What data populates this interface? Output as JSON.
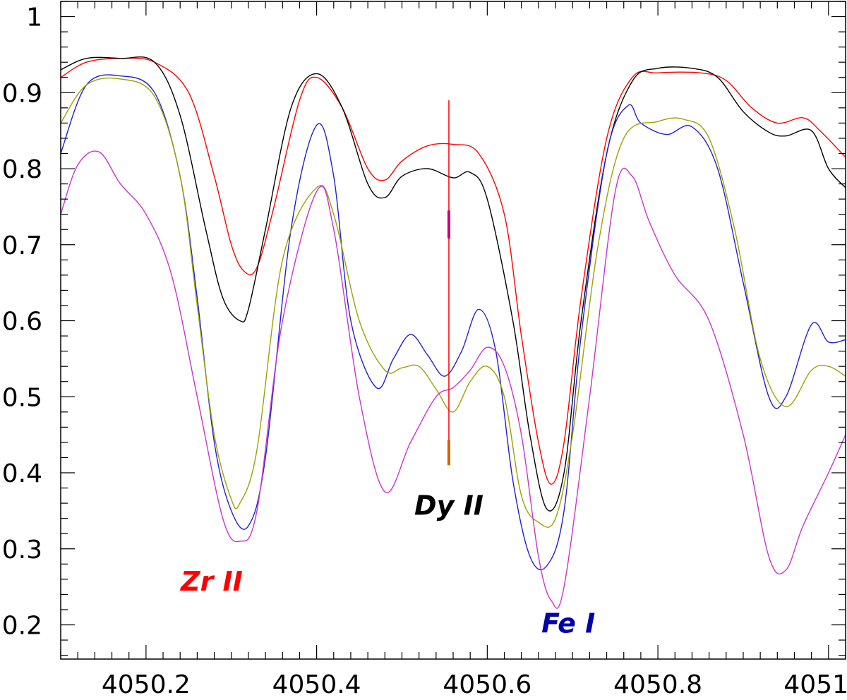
{
  "chart_data": {
    "type": "line",
    "title": "",
    "xlabel": "",
    "ylabel": "",
    "xlim": [
      4050.1,
      4051.02
    ],
    "ylim": [
      0.155,
      1.02
    ],
    "grid": false,
    "x_ticks": [
      {
        "value": 4050.2,
        "label": "4050.2"
      },
      {
        "value": 4050.4,
        "label": "4050.4"
      },
      {
        "value": 4050.6,
        "label": "4050.6"
      },
      {
        "value": 4050.8,
        "label": "4050.8"
      },
      {
        "value": 4051.0,
        "label": "4051"
      }
    ],
    "y_ticks": [
      {
        "value": 1.0,
        "label": "1"
      },
      {
        "value": 0.9,
        "label": "0.9"
      },
      {
        "value": 0.8,
        "label": "0.8"
      },
      {
        "value": 0.7,
        "label": "0.7"
      },
      {
        "value": 0.6,
        "label": "0.6"
      },
      {
        "value": 0.5,
        "label": "0.5"
      },
      {
        "value": 0.4,
        "label": "0.4"
      },
      {
        "value": 0.3,
        "label": "0.3"
      },
      {
        "value": 0.2,
        "label": "0.2"
      }
    ],
    "series": [
      {
        "color": "#ff0000",
        "x": [
          4050.1,
          4050.13,
          4050.17,
          4050.21,
          4050.25,
          4050.28,
          4050.3,
          4050.315,
          4050.33,
          4050.35,
          4050.38,
          4050.4,
          4050.43,
          4050.46,
          4050.48,
          4050.5,
          4050.53,
          4050.56,
          4050.59,
          4050.62,
          4050.64,
          4050.66,
          4050.675,
          4050.69,
          4050.71,
          4050.74,
          4050.77,
          4050.8,
          4050.85,
          4050.88,
          4050.91,
          4050.94,
          4050.97,
          4050.99,
          4051.02
        ],
        "y": [
          0.92,
          0.94,
          0.945,
          0.94,
          0.9,
          0.79,
          0.7,
          0.665,
          0.67,
          0.75,
          0.89,
          0.92,
          0.88,
          0.8,
          0.785,
          0.81,
          0.83,
          0.832,
          0.82,
          0.74,
          0.58,
          0.44,
          0.385,
          0.44,
          0.63,
          0.84,
          0.92,
          0.926,
          0.926,
          0.916,
          0.88,
          0.86,
          0.867,
          0.85,
          0.815
        ]
      },
      {
        "color": "#000000",
        "x": [
          4050.1,
          4050.13,
          4050.17,
          4050.21,
          4050.24,
          4050.27,
          4050.29,
          4050.31,
          4050.32,
          4050.34,
          4050.37,
          4050.4,
          4050.43,
          4050.46,
          4050.48,
          4050.5,
          4050.53,
          4050.56,
          4050.58,
          4050.6,
          4050.63,
          4050.65,
          4050.67,
          4050.69,
          4050.71,
          4050.74,
          4050.77,
          4050.8,
          4050.84,
          4050.87,
          4050.9,
          4050.93,
          4050.95,
          4050.98,
          4051.0,
          4051.02
        ],
        "y": [
          0.93,
          0.945,
          0.945,
          0.94,
          0.87,
          0.72,
          0.63,
          0.6,
          0.615,
          0.72,
          0.88,
          0.925,
          0.88,
          0.78,
          0.762,
          0.79,
          0.8,
          0.788,
          0.795,
          0.76,
          0.6,
          0.45,
          0.352,
          0.4,
          0.6,
          0.82,
          0.915,
          0.932,
          0.932,
          0.92,
          0.875,
          0.848,
          0.843,
          0.85,
          0.8,
          0.775
        ]
      },
      {
        "color": "#2020d0",
        "x": [
          4050.1,
          4050.13,
          4050.17,
          4050.21,
          4050.24,
          4050.26,
          4050.28,
          4050.3,
          4050.32,
          4050.34,
          4050.37,
          4050.4,
          4050.42,
          4050.44,
          4050.47,
          4050.49,
          4050.51,
          4050.53,
          4050.55,
          4050.57,
          4050.59,
          4050.61,
          4050.63,
          4050.65,
          4050.67,
          4050.69,
          4050.71,
          4050.74,
          4050.765,
          4050.78,
          4050.81,
          4050.84,
          4050.87,
          4050.9,
          4050.93,
          4050.95,
          4050.98,
          4051.0,
          4051.02
        ],
        "y": [
          0.82,
          0.91,
          0.922,
          0.9,
          0.79,
          0.63,
          0.44,
          0.35,
          0.33,
          0.42,
          0.72,
          0.857,
          0.79,
          0.6,
          0.512,
          0.55,
          0.582,
          0.555,
          0.527,
          0.56,
          0.615,
          0.56,
          0.39,
          0.29,
          0.278,
          0.35,
          0.58,
          0.82,
          0.883,
          0.86,
          0.845,
          0.855,
          0.8,
          0.65,
          0.5,
          0.5,
          0.595,
          0.572,
          0.575
        ]
      },
      {
        "color": "#a0a000",
        "x": [
          4050.1,
          4050.13,
          4050.17,
          4050.21,
          4050.24,
          4050.26,
          4050.28,
          4050.3,
          4050.31,
          4050.33,
          4050.36,
          4050.4,
          4050.42,
          4050.45,
          4050.48,
          4050.5,
          4050.52,
          4050.54,
          4050.56,
          4050.58,
          4050.6,
          4050.62,
          4050.64,
          4050.66,
          4050.68,
          4050.7,
          4050.73,
          4050.76,
          4050.8,
          4050.83,
          4050.86,
          4050.89,
          4050.92,
          4050.95,
          4050.98,
          4051.0,
          4051.02
        ],
        "y": [
          0.86,
          0.91,
          0.918,
          0.895,
          0.79,
          0.62,
          0.45,
          0.365,
          0.36,
          0.43,
          0.68,
          0.775,
          0.74,
          0.6,
          0.535,
          0.538,
          0.54,
          0.51,
          0.48,
          0.52,
          0.54,
          0.5,
          0.37,
          0.335,
          0.34,
          0.45,
          0.7,
          0.84,
          0.862,
          0.865,
          0.84,
          0.72,
          0.55,
          0.487,
          0.535,
          0.54,
          0.527
        ]
      },
      {
        "color": "#cc33cc",
        "x": [
          4050.1,
          4050.12,
          4050.145,
          4050.17,
          4050.2,
          4050.23,
          4050.26,
          4050.29,
          4050.31,
          4050.33,
          4050.36,
          4050.4,
          4050.42,
          4050.45,
          4050.48,
          4050.51,
          4050.54,
          4050.56,
          4050.58,
          4050.6,
          4050.62,
          4050.64,
          4050.66,
          4050.675,
          4050.69,
          4050.72,
          4050.75,
          4050.77,
          4050.79,
          4050.82,
          4050.86,
          4050.9,
          4050.93,
          4050.95,
          4050.97,
          4051.0,
          4051.02
        ],
        "y": [
          0.74,
          0.805,
          0.822,
          0.78,
          0.74,
          0.66,
          0.5,
          0.34,
          0.31,
          0.35,
          0.6,
          0.77,
          0.72,
          0.5,
          0.375,
          0.44,
          0.5,
          0.512,
          0.535,
          0.565,
          0.54,
          0.45,
          0.29,
          0.232,
          0.25,
          0.5,
          0.77,
          0.79,
          0.73,
          0.66,
          0.6,
          0.45,
          0.29,
          0.272,
          0.33,
          0.4,
          0.45
        ]
      }
    ],
    "marker_line": {
      "x": 4050.555,
      "y_range": [
        0.41,
        0.89
      ],
      "color": "#ff0000"
    },
    "marker_ticks": [
      {
        "x": 4050.555,
        "y_range": [
          0.708,
          0.745
        ],
        "color": "#cc0077"
      },
      {
        "x": 4050.555,
        "y_range": [
          0.41,
          0.443
        ],
        "color": "#cc6600"
      }
    ],
    "annotations": [
      {
        "text": "Zr II",
        "x": 4050.277,
        "y": 0.245,
        "color": "#ff0000"
      },
      {
        "text": "Dy II",
        "x": 4050.555,
        "y": 0.345,
        "color": "#000000"
      },
      {
        "text": "Fe I",
        "x": 4050.695,
        "y": 0.19,
        "color": "#0000aa"
      }
    ]
  }
}
